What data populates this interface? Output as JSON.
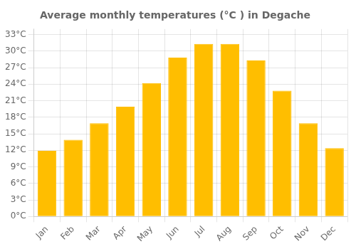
{
  "chart_data": {
    "type": "bar",
    "title": "Average monthly temperatures (°C ) in Degache",
    "categories": [
      "Jan",
      "Feb",
      "Mar",
      "Apr",
      "May",
      "Jun",
      "Jul",
      "Aug",
      "Sep",
      "Oct",
      "Nov",
      "Dec"
    ],
    "values": [
      11.9,
      13.9,
      16.9,
      19.9,
      24.2,
      28.8,
      31.3,
      31.3,
      28.3,
      22.8,
      16.9,
      12.4
    ],
    "color": "#FFBE00",
    "ylim": [
      0,
      34
    ],
    "yticks": [
      {
        "value": 0,
        "label": "0°C"
      },
      {
        "value": 3,
        "label": "3°C"
      },
      {
        "value": 6,
        "label": "6°C"
      },
      {
        "value": 9,
        "label": "9°C"
      },
      {
        "value": 12,
        "label": "12°C"
      },
      {
        "value": 15,
        "label": "15°C"
      },
      {
        "value": 18,
        "label": "18°C"
      },
      {
        "value": 21,
        "label": "21°C"
      },
      {
        "value": 24,
        "label": "24°C"
      },
      {
        "value": 27,
        "label": "27°C"
      },
      {
        "value": 30,
        "label": "30°C"
      },
      {
        "value": 33,
        "label": "33°C"
      }
    ],
    "grid": true
  }
}
